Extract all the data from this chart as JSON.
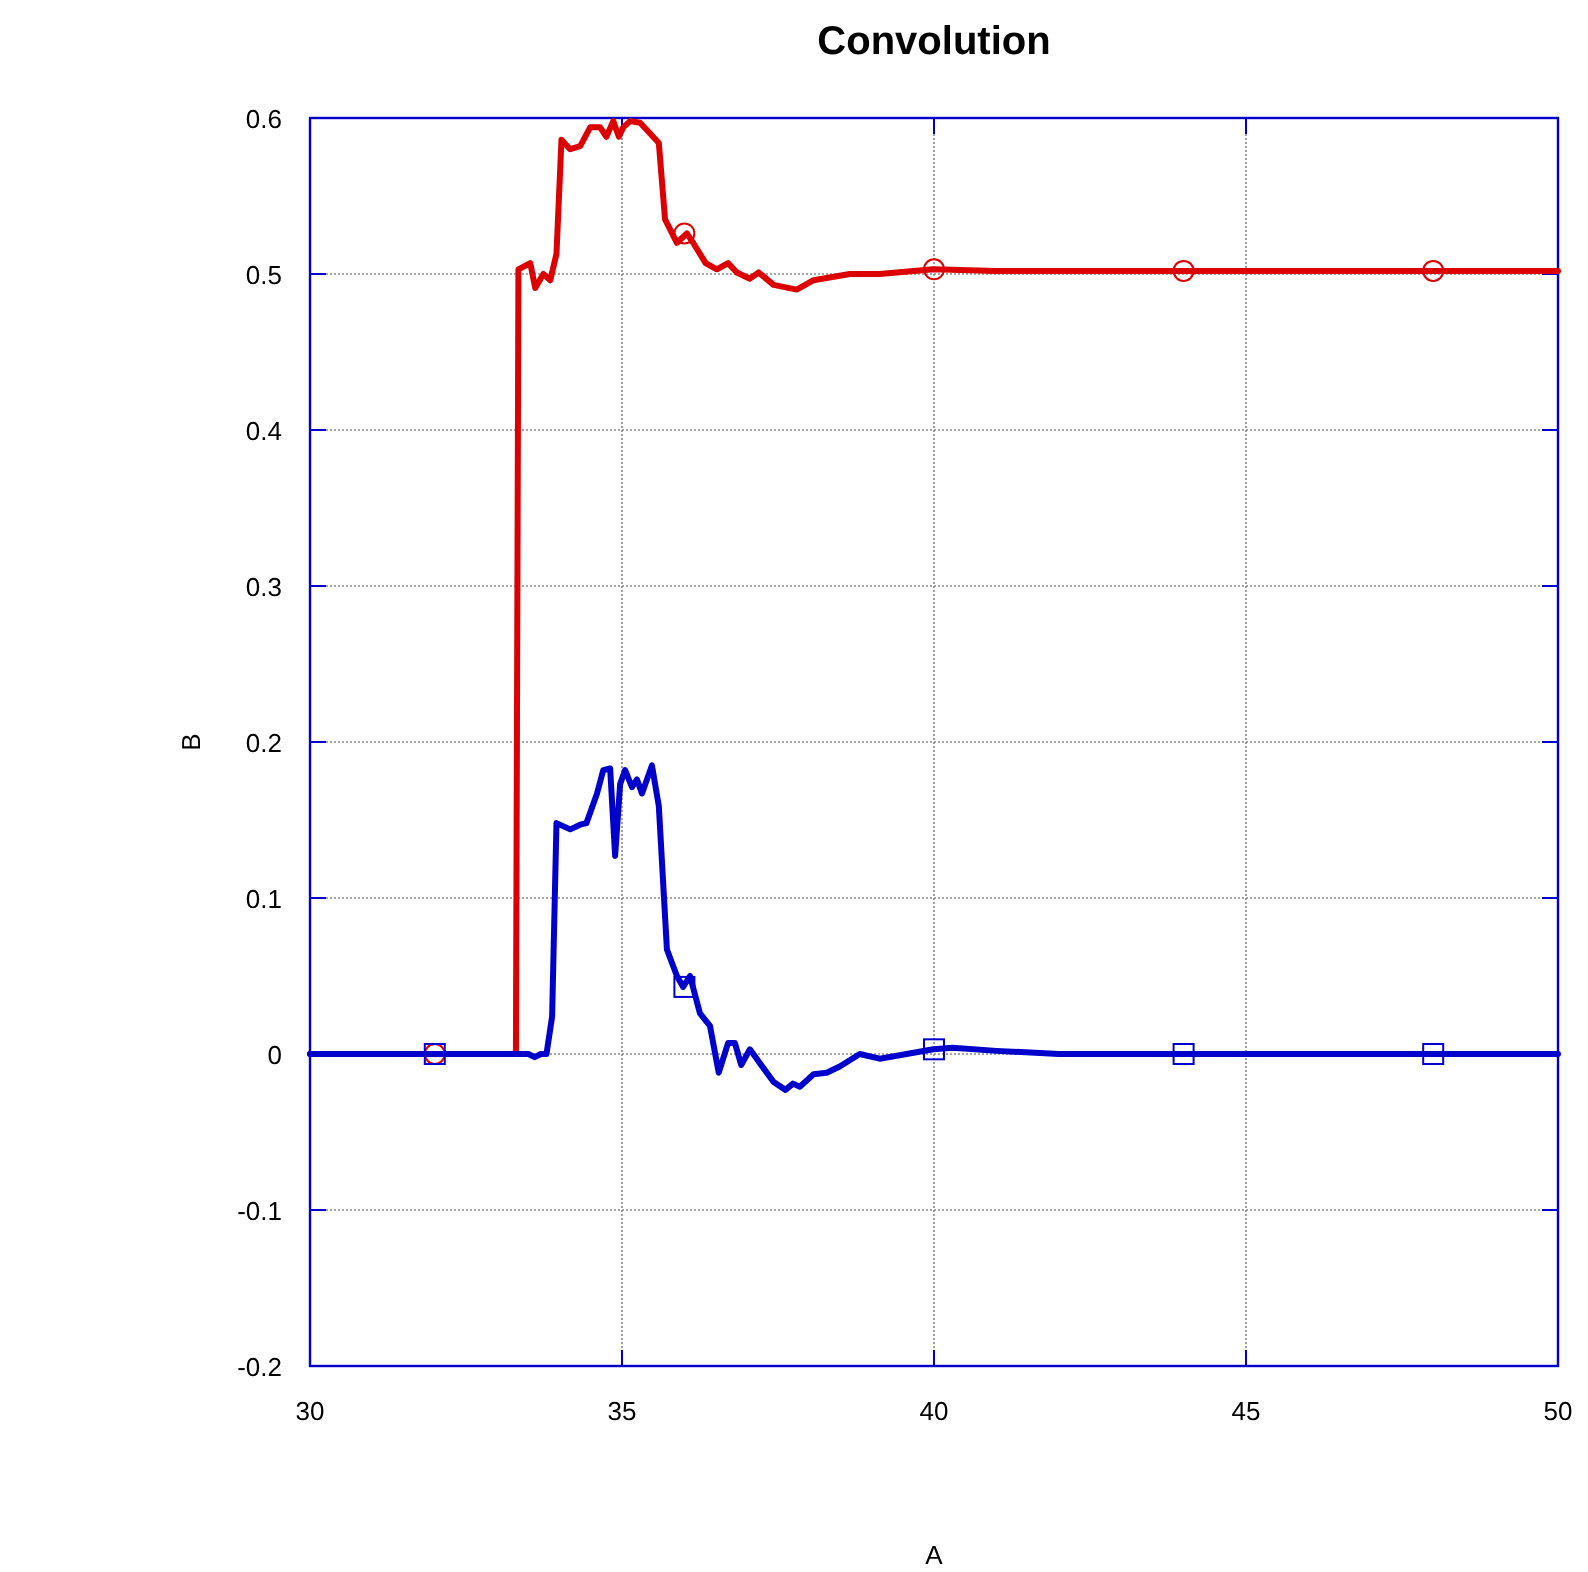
{
  "chart_data": {
    "type": "line",
    "title": "Convolution",
    "xlabel": "A",
    "ylabel": "B",
    "xlim": [
      30,
      50
    ],
    "xticks": [
      30,
      35,
      40,
      45,
      50
    ],
    "ylim": [
      -0.2,
      0.6
    ],
    "yticks": [
      -0.2,
      -0.1,
      0,
      0.1,
      0.2,
      0.3,
      0.4,
      0.5,
      0.6
    ],
    "grid": true,
    "series": [
      {
        "color": "#dd0000",
        "marker": "none",
        "x": [
          30,
          33.3,
          33.34,
          33.53,
          33.61,
          33.74,
          33.85,
          33.95,
          34.03,
          34.17,
          34.33,
          34.49,
          34.65,
          34.75,
          34.86,
          34.95,
          35.02,
          35.13,
          35.29,
          35.45,
          35.59,
          35.69,
          35.88,
          36.04,
          36.14,
          36.34,
          36.52,
          36.7,
          36.84,
          37.05,
          37.19,
          37.43,
          37.8,
          38.07,
          38.65,
          39.13,
          39.99,
          41,
          50
        ],
        "values": [
          0,
          0,
          0.503,
          0.507,
          0.491,
          0.5,
          0.496,
          0.513,
          0.586,
          0.58,
          0.582,
          0.594,
          0.594,
          0.588,
          0.598,
          0.588,
          0.594,
          0.598,
          0.597,
          0.59,
          0.584,
          0.535,
          0.52,
          0.526,
          0.52,
          0.507,
          0.503,
          0.507,
          0.501,
          0.497,
          0.501,
          0.493,
          0.49,
          0.496,
          0.5,
          0.5,
          0.503,
          0.502,
          0.502
        ]
      },
      {
        "color": "#0000cc",
        "marker": "none",
        "x": [
          30,
          33.5,
          33.6,
          33.7,
          33.79,
          33.88,
          33.95,
          34.17,
          34.33,
          34.43,
          34.6,
          34.7,
          34.81,
          34.89,
          34.97,
          35.05,
          35.16,
          35.24,
          35.32,
          35.48,
          35.59,
          35.72,
          35.88,
          35.98,
          36.09,
          36.25,
          36.41,
          36.55,
          36.7,
          36.81,
          36.91,
          37.05,
          37.21,
          37.43,
          37.62,
          37.74,
          37.85,
          38.07,
          38.28,
          38.49,
          38.81,
          39.13,
          39.56,
          39.99,
          40.3,
          41,
          42,
          50
        ],
        "values": [
          0,
          0,
          -0.002,
          0,
          0,
          0.024,
          0.148,
          0.144,
          0.147,
          0.148,
          0.167,
          0.182,
          0.183,
          0.127,
          0.173,
          0.182,
          0.171,
          0.176,
          0.167,
          0.185,
          0.159,
          0.067,
          0.05,
          0.043,
          0.05,
          0.026,
          0.018,
          -0.012,
          0.007,
          0.007,
          -0.007,
          0.003,
          -0.006,
          -0.018,
          -0.023,
          -0.019,
          -0.021,
          -0.013,
          -0.012,
          -0.008,
          0,
          -0.003,
          0,
          0.003,
          0.004,
          0.002,
          0,
          0
        ]
      },
      {
        "type": "scatter",
        "color": "#dd0000",
        "marker": "circle",
        "x": [
          32,
          36,
          40,
          44,
          48
        ],
        "values": [
          0,
          0.526,
          0.503,
          0.502,
          0.502
        ]
      },
      {
        "type": "scatter",
        "color": "#0000cc",
        "marker": "square",
        "x": [
          32,
          36,
          40,
          44,
          48
        ],
        "values": [
          0,
          0.043,
          0.003,
          0,
          0
        ]
      }
    ]
  }
}
